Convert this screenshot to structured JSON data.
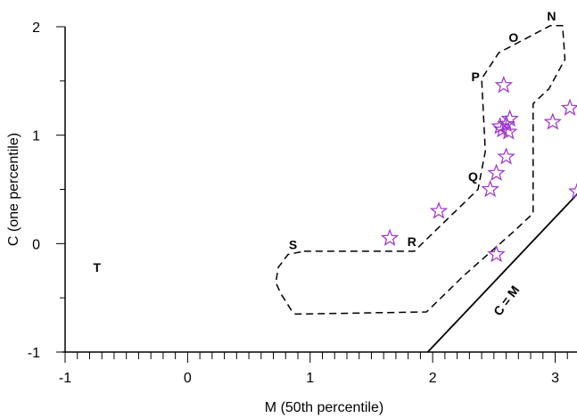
{
  "chart_data": {
    "type": "scatter",
    "title": "",
    "xlabel": "M (50th percentile)",
    "ylabel": "C (one percentile)",
    "xlim": [
      -1,
      3.2
    ],
    "ylim": [
      -1,
      2
    ],
    "x_ticks": [
      "-1",
      "0",
      "1",
      "2",
      "3"
    ],
    "y_ticks": [
      "-1",
      "0",
      "1",
      "2"
    ],
    "grid": false,
    "marker": "star",
    "marker_color": "#9b30c8",
    "points": [
      {
        "x": 1.65,
        "y": 0.05
      },
      {
        "x": 2.05,
        "y": 0.3
      },
      {
        "x": 2.47,
        "y": 0.5
      },
      {
        "x": 2.52,
        "y": 0.65
      },
      {
        "x": 2.6,
        "y": 0.8
      },
      {
        "x": 2.57,
        "y": 1.05
      },
      {
        "x": 2.55,
        "y": 1.08
      },
      {
        "x": 2.6,
        "y": 1.1
      },
      {
        "x": 2.63,
        "y": 1.15
      },
      {
        "x": 2.62,
        "y": 1.03
      },
      {
        "x": 2.58,
        "y": 1.46
      },
      {
        "x": 2.52,
        "y": -0.1
      },
      {
        "x": 2.98,
        "y": 1.12
      },
      {
        "x": 3.12,
        "y": 1.25
      },
      {
        "x": 3.18,
        "y": 0.48
      }
    ],
    "region_points": [
      {
        "label": "N",
        "x": 2.97,
        "y": 2.1
      },
      {
        "label": "O",
        "x": 2.66,
        "y": 1.9
      },
      {
        "label": "P",
        "x": 2.35,
        "y": 1.54
      },
      {
        "label": "Q",
        "x": 2.33,
        "y": 0.62
      },
      {
        "label": "R",
        "x": 1.83,
        "y": 0.02
      },
      {
        "label": "S",
        "x": 0.86,
        "y": -0.01
      },
      {
        "label": "T",
        "x": -0.74,
        "y": -0.22
      }
    ],
    "boundary": [
      [
        0.95,
        -0.07
      ],
      [
        1.85,
        -0.07
      ],
      [
        2.37,
        0.5
      ],
      [
        2.43,
        0.85
      ],
      [
        2.4,
        1.52
      ],
      [
        2.54,
        1.76
      ],
      [
        2.96,
        2.01
      ],
      [
        3.06,
        2.01
      ],
      [
        3.08,
        1.7
      ],
      [
        2.95,
        1.43
      ],
      [
        2.82,
        1.29
      ],
      [
        2.82,
        0.28
      ],
      [
        2.67,
        0.12
      ],
      [
        2.25,
        -0.3
      ],
      [
        1.95,
        -0.63
      ],
      [
        0.88,
        -0.65
      ],
      [
        0.85,
        -0.62
      ],
      [
        0.76,
        -0.46
      ],
      [
        0.72,
        -0.36
      ],
      [
        0.74,
        -0.22
      ],
      [
        0.82,
        -0.1
      ],
      [
        0.95,
        -0.07
      ]
    ],
    "line_c_equals_m": {
      "label": "C = M",
      "points": [
        [
          1.96,
          -1.0
        ],
        [
          3.2,
          0.48
        ]
      ]
    }
  }
}
